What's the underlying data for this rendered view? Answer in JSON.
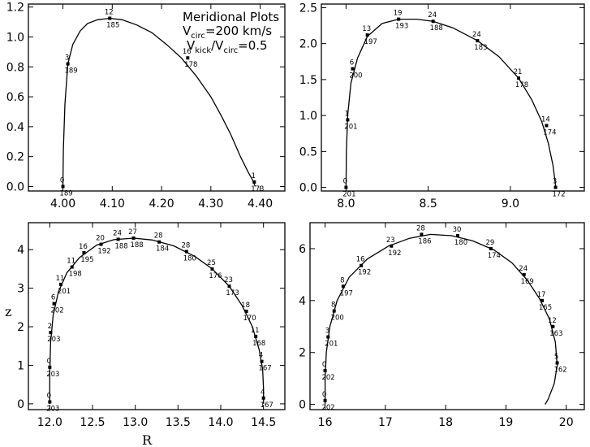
{
  "figure": {
    "title": "Meridional Plots",
    "vcirc_prefix": "V",
    "vcirc_sub": "circ",
    "vcirc_suffix": "=200 km/s",
    "vratio_prefix": "V",
    "vratio_sub1": "kick",
    "vratio_mid": "/V",
    "vratio_sub2": "circ",
    "vratio_suffix": "=0.5",
    "xlabel": "R",
    "ylabel": "z"
  },
  "chart_data": [
    {
      "type": "line",
      "panel": "top-left",
      "xlim": [
        3.93,
        4.45
      ],
      "ylim": [
        -0.03,
        1.22
      ],
      "xticks": [
        4.0,
        4.1,
        4.2,
        4.3,
        4.4
      ],
      "xticklabels": [
        "4.00",
        "4.10",
        "4.20",
        "4.30",
        "4.40"
      ],
      "yticks": [
        0.0,
        0.2,
        0.4,
        0.6,
        0.8,
        1.0,
        1.2
      ],
      "yticklabels": [
        "0.0",
        "0.2",
        "0.4",
        "0.6",
        "0.8",
        "1.0",
        "1.2"
      ],
      "curve": {
        "x": [
          4.0,
          4.001,
          4.004,
          4.01,
          4.02,
          4.035,
          4.05,
          4.07,
          4.095,
          4.12,
          4.15,
          4.18,
          4.21,
          4.24,
          4.27,
          4.3,
          4.32,
          4.34,
          4.36,
          4.375,
          4.385,
          4.39
        ],
        "y": [
          0.0,
          0.25,
          0.55,
          0.82,
          0.95,
          1.04,
          1.09,
          1.115,
          1.125,
          1.115,
          1.08,
          1.03,
          0.95,
          0.86,
          0.74,
          0.6,
          0.48,
          0.35,
          0.2,
          0.1,
          0.04,
          0.0
        ]
      },
      "markers": [
        {
          "x": 4.0,
          "y": 0.0,
          "top": "0",
          "bottom": "189"
        },
        {
          "x": 4.01,
          "y": 0.82,
          "top": "3",
          "bottom": "189"
        },
        {
          "x": 4.095,
          "y": 1.125,
          "top": "12",
          "bottom": "185"
        },
        {
          "x": 4.253,
          "y": 0.86,
          "top": "16",
          "bottom": "178"
        },
        {
          "x": 4.388,
          "y": 0.03,
          "top": "1",
          "bottom": "173"
        }
      ]
    },
    {
      "type": "line",
      "panel": "top-right",
      "xlim": [
        7.85,
        9.45
      ],
      "ylim": [
        -0.05,
        2.55
      ],
      "xticks": [
        8.0,
        8.5,
        9.0
      ],
      "xticklabels": [
        "8.0",
        "8.5",
        "9.0"
      ],
      "yticks": [
        0.0,
        0.5,
        1.0,
        1.5,
        2.0,
        2.5
      ],
      "yticklabels": [
        "0.0",
        "0.5",
        "1.0",
        "1.5",
        "2.0",
        "2.5"
      ],
      "curve": {
        "x": [
          8.0,
          8.002,
          8.01,
          8.03,
          8.07,
          8.13,
          8.22,
          8.32,
          8.43,
          8.53,
          8.65,
          8.8,
          8.93,
          9.05,
          9.13,
          9.19,
          9.23,
          9.26,
          9.275
        ],
        "y": [
          0.0,
          0.5,
          1.0,
          1.45,
          1.8,
          2.1,
          2.28,
          2.34,
          2.34,
          2.31,
          2.22,
          2.04,
          1.82,
          1.52,
          1.22,
          0.92,
          0.62,
          0.3,
          0.02
        ]
      },
      "markers": [
        {
          "x": 8.0,
          "y": 0.0,
          "top": "0",
          "bottom": "201"
        },
        {
          "x": 8.01,
          "y": 0.94,
          "top": "1",
          "bottom": "201"
        },
        {
          "x": 8.04,
          "y": 1.65,
          "top": "6",
          "bottom": "200"
        },
        {
          "x": 8.13,
          "y": 2.12,
          "top": "13",
          "bottom": "197"
        },
        {
          "x": 8.32,
          "y": 2.34,
          "top": "19",
          "bottom": "193"
        },
        {
          "x": 8.53,
          "y": 2.31,
          "top": "24",
          "bottom": "188"
        },
        {
          "x": 8.8,
          "y": 2.04,
          "top": "24",
          "bottom": "183"
        },
        {
          "x": 9.05,
          "y": 1.52,
          "top": "21",
          "bottom": "178"
        },
        {
          "x": 9.22,
          "y": 0.86,
          "top": "14",
          "bottom": "174"
        },
        {
          "x": 9.275,
          "y": 0.0,
          "top": "3",
          "bottom": "172"
        }
      ]
    },
    {
      "type": "line",
      "panel": "bottom-left",
      "xlim": [
        11.75,
        14.75
      ],
      "ylim": [
        -0.15,
        4.7
      ],
      "xticks": [
        12.0,
        12.5,
        13.0,
        13.5,
        14.0,
        14.5
      ],
      "xticklabels": [
        "12.0",
        "12.5",
        "13.0",
        "13.5",
        "14.0",
        "14.5"
      ],
      "yticks": [
        0,
        1,
        2,
        3,
        4
      ],
      "yticklabels": [
        "0",
        "1",
        "2",
        "3",
        "4"
      ],
      "curve": {
        "x": [
          12.0,
          12.0,
          12.01,
          12.04,
          12.1,
          12.2,
          12.35,
          12.55,
          12.75,
          12.98,
          13.2,
          13.45,
          13.7,
          13.9,
          14.1,
          14.25,
          14.37,
          14.45,
          14.49,
          14.5,
          14.5
        ],
        "y": [
          0.0,
          0.8,
          1.6,
          2.3,
          2.9,
          3.4,
          3.8,
          4.12,
          4.26,
          4.3,
          4.25,
          4.1,
          3.82,
          3.5,
          3.05,
          2.55,
          2.0,
          1.4,
          0.9,
          0.4,
          0.0
        ]
      },
      "markers": [
        {
          "x": 12.0,
          "y": 0.05,
          "top": "0",
          "bottom": "203"
        },
        {
          "x": 12.0,
          "y": 0.95,
          "top": "0",
          "bottom": "203"
        },
        {
          "x": 12.01,
          "y": 1.85,
          "top": "2",
          "bottom": "203"
        },
        {
          "x": 12.05,
          "y": 2.6,
          "top": "6",
          "bottom": "202"
        },
        {
          "x": 12.13,
          "y": 3.1,
          "top": "11",
          "bottom": "201"
        },
        {
          "x": 12.26,
          "y": 3.55,
          "top": "11",
          "bottom": "198"
        },
        {
          "x": 12.4,
          "y": 3.92,
          "top": "16",
          "bottom": "195"
        },
        {
          "x": 12.6,
          "y": 4.14,
          "top": "20",
          "bottom": "192"
        },
        {
          "x": 12.8,
          "y": 4.27,
          "top": "24",
          "bottom": "188"
        },
        {
          "x": 12.98,
          "y": 4.3,
          "top": "27",
          "bottom": "188"
        },
        {
          "x": 13.28,
          "y": 4.2,
          "top": "28",
          "bottom": "184"
        },
        {
          "x": 13.6,
          "y": 3.95,
          "top": "28",
          "bottom": "180"
        },
        {
          "x": 13.9,
          "y": 3.5,
          "top": "25",
          "bottom": "176"
        },
        {
          "x": 14.1,
          "y": 3.05,
          "top": "23",
          "bottom": "173"
        },
        {
          "x": 14.3,
          "y": 2.4,
          "top": "18",
          "bottom": "170"
        },
        {
          "x": 14.41,
          "y": 1.75,
          "top": "11",
          "bottom": "168"
        },
        {
          "x": 14.48,
          "y": 1.1,
          "top": "4",
          "bottom": "167"
        },
        {
          "x": 14.5,
          "y": 0.15,
          "top": "4",
          "bottom": "167"
        }
      ]
    },
    {
      "type": "line",
      "panel": "bottom-right",
      "xlim": [
        15.75,
        20.3
      ],
      "ylim": [
        -0.2,
        7.0
      ],
      "xticks": [
        16,
        17,
        18,
        19,
        20
      ],
      "xticklabels": [
        "16",
        "17",
        "18",
        "19",
        "20"
      ],
      "yticks": [
        0,
        2,
        4,
        6
      ],
      "yticklabels": [
        "0",
        "2",
        "4",
        "6"
      ],
      "curve": {
        "x": [
          16.0,
          16.0,
          16.02,
          16.08,
          16.2,
          16.4,
          16.7,
          17.05,
          17.4,
          17.75,
          18.1,
          18.45,
          18.8,
          19.1,
          19.35,
          19.55,
          19.72,
          19.82,
          19.85,
          19.8,
          19.7,
          19.65
        ],
        "y": [
          0.0,
          1.0,
          2.0,
          3.0,
          4.0,
          4.9,
          5.6,
          6.1,
          6.4,
          6.55,
          6.5,
          6.3,
          5.95,
          5.45,
          4.8,
          4.1,
          3.3,
          2.4,
          1.5,
          0.8,
          0.2,
          0.0
        ]
      },
      "markers": [
        {
          "x": 16.0,
          "y": 0.15,
          "top": "0",
          "bottom": "202"
        },
        {
          "x": 16.0,
          "y": 1.3,
          "top": "0",
          "bottom": "202"
        },
        {
          "x": 16.05,
          "y": 2.6,
          "top": "3",
          "bottom": "201"
        },
        {
          "x": 16.15,
          "y": 3.6,
          "top": "8",
          "bottom": "200"
        },
        {
          "x": 16.3,
          "y": 4.55,
          "top": "8",
          "bottom": "197"
        },
        {
          "x": 16.6,
          "y": 5.35,
          "top": "16",
          "bottom": "192"
        },
        {
          "x": 17.1,
          "y": 6.1,
          "top": "23",
          "bottom": "192"
        },
        {
          "x": 17.6,
          "y": 6.55,
          "top": "28",
          "bottom": "186"
        },
        {
          "x": 18.2,
          "y": 6.5,
          "top": "30",
          "bottom": "180"
        },
        {
          "x": 18.75,
          "y": 6.0,
          "top": "29",
          "bottom": "174"
        },
        {
          "x": 19.3,
          "y": 5.0,
          "top": "24",
          "bottom": "169"
        },
        {
          "x": 19.6,
          "y": 4.0,
          "top": "17",
          "bottom": "165"
        },
        {
          "x": 19.78,
          "y": 3.0,
          "top": "12",
          "bottom": "163"
        },
        {
          "x": 19.85,
          "y": 1.6,
          "top": "5",
          "bottom": "162"
        }
      ]
    }
  ]
}
